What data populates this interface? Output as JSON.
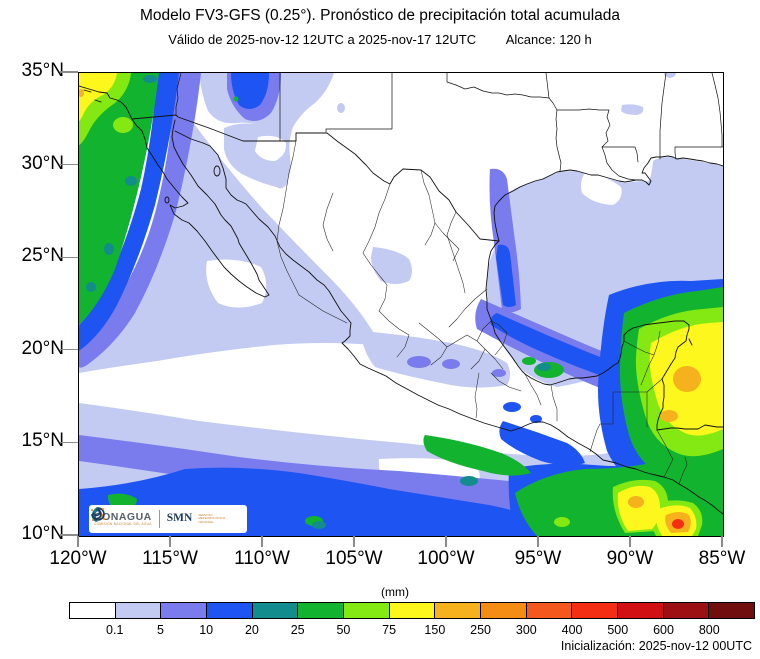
{
  "header": {
    "title": "Modelo FV3-GFS (0.25°). Pronóstico de precipitación total acumulada",
    "valid": "Válido de 2025-nov-12 12UTC a 2025-nov-17 12UTC",
    "range": "Alcance: 120 h"
  },
  "axes": {
    "lat": [
      "35°N",
      "30°N",
      "25°N",
      "20°N",
      "15°N",
      "10°N"
    ],
    "lon": [
      "120°W",
      "115°W",
      "110°W",
      "105°W",
      "100°W",
      "95°W",
      "90°W",
      "85°W"
    ]
  },
  "legend": {
    "units": "(mm)",
    "ticks": [
      "0.1",
      "5",
      "10",
      "20",
      "25",
      "50",
      "75",
      "150",
      "250",
      "300",
      "400",
      "500",
      "600",
      "800"
    ],
    "colors": [
      "#ffffff",
      "#c3cbf3",
      "#7a7cee",
      "#1e55f2",
      "#128c8c",
      "#12b32f",
      "#84e912",
      "#fdf71d",
      "#f5b21c",
      "#f58d15",
      "#f4581c",
      "#f42e12",
      "#d11013",
      "#9c0f12",
      "#700d0f"
    ]
  },
  "footer": {
    "initialization": "Inicialización: 2025-nov-12 00UTC"
  },
  "logos": {
    "conagua": "CONAGUA",
    "conagua_sub": "COMISIÓN NACIONAL DEL AGUA",
    "smn": "SMN",
    "smn_sub": "SERVICIO METEOROLÓGICO NACIONAL"
  }
}
